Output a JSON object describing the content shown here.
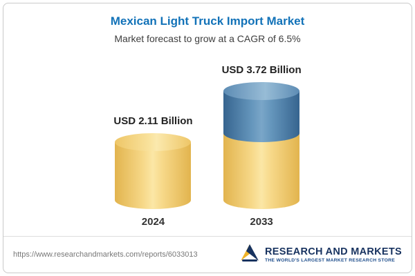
{
  "header": {
    "title": "Mexican Light Truck Import Market",
    "subtitle": "Market forecast to grow at a CAGR of 6.5%"
  },
  "chart_data": {
    "type": "bar",
    "categories": [
      "2024",
      "2033"
    ],
    "values": [
      2.11,
      3.72
    ],
    "value_labels": [
      "USD 2.11 Billion",
      "USD 3.72 Billion"
    ],
    "title": "Mexican Light Truck Import Market",
    "subtitle": "Market forecast to grow at a CAGR of 6.5%",
    "unit": "USD Billion",
    "cagr": "6.5%",
    "legend": "none",
    "colors": {
      "base_segment": "#f5d480",
      "growth_segment": "#5b8ab2",
      "title_blue": "#1272b8"
    },
    "notes": "2033 cylinder is two-tone: yellow base equal to 2024 value (2.11), blue top equal to growth (1.61)"
  },
  "footer": {
    "url": "https://www.researchandmarkets.com/reports/6033013",
    "brand_name": "RESEARCH AND MARKETS",
    "brand_tagline": "THE WORLD'S LARGEST MARKET RESEARCH STORE"
  }
}
